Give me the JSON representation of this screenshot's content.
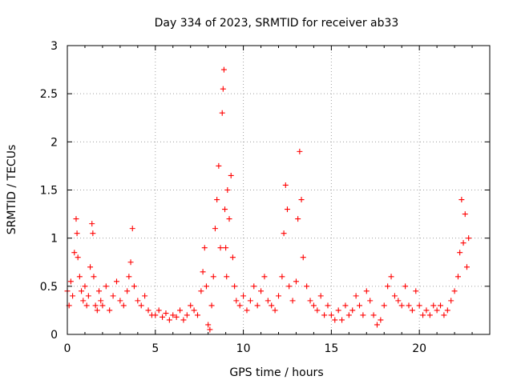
{
  "chart_data": {
    "type": "scatter",
    "title": "Day 334 of 2023, SRMTID for receiver ab33",
    "xlabel": "GPS time / hours",
    "ylabel": "SRMTID / TECUs",
    "xlim": [
      0,
      24
    ],
    "ylim": [
      0,
      3
    ],
    "xticks": [
      0,
      5,
      10,
      15,
      20
    ],
    "xtick_labels": [
      "0",
      "5",
      "10",
      "15",
      "20"
    ],
    "yticks": [
      0,
      0.5,
      1,
      1.5,
      2,
      2.5,
      3
    ],
    "ytick_labels": [
      "0",
      "0.5",
      "1",
      "1.5",
      "2",
      "2.5",
      "3"
    ],
    "grid": true,
    "marker": "+",
    "series": [
      {
        "name": "SRMTID",
        "color": "#ff0000",
        "x": [
          0.0,
          0.1,
          0.2,
          0.3,
          0.4,
          0.5,
          0.55,
          0.6,
          0.7,
          0.8,
          0.9,
          1.0,
          1.1,
          1.2,
          1.3,
          1.4,
          1.45,
          1.5,
          1.6,
          1.7,
          1.8,
          1.9,
          2.0,
          2.2,
          2.4,
          2.6,
          2.8,
          3.0,
          3.2,
          3.4,
          3.5,
          3.6,
          3.7,
          3.8,
          4.0,
          4.2,
          4.4,
          4.6,
          4.8,
          5.0,
          5.2,
          5.4,
          5.6,
          5.8,
          6.0,
          6.2,
          6.4,
          6.6,
          6.8,
          7.0,
          7.2,
          7.4,
          7.6,
          7.7,
          7.8,
          7.9,
          8.0,
          8.1,
          8.2,
          8.3,
          8.4,
          8.5,
          8.6,
          8.7,
          8.8,
          8.85,
          8.9,
          8.95,
          9.0,
          9.05,
          9.1,
          9.2,
          9.3,
          9.4,
          9.5,
          9.6,
          9.8,
          10.0,
          10.2,
          10.4,
          10.6,
          10.8,
          11.0,
          11.2,
          11.4,
          11.6,
          11.8,
          12.0,
          12.2,
          12.3,
          12.4,
          12.5,
          12.6,
          12.8,
          13.0,
          13.1,
          13.2,
          13.3,
          13.4,
          13.6,
          13.8,
          14.0,
          14.2,
          14.4,
          14.6,
          14.8,
          15.0,
          15.2,
          15.4,
          15.6,
          15.8,
          16.0,
          16.2,
          16.4,
          16.6,
          16.8,
          17.0,
          17.2,
          17.4,
          17.6,
          17.8,
          18.0,
          18.2,
          18.4,
          18.6,
          18.8,
          19.0,
          19.2,
          19.4,
          19.6,
          19.8,
          20.0,
          20.2,
          20.4,
          20.6,
          20.8,
          21.0,
          21.2,
          21.4,
          21.6,
          21.8,
          22.0,
          22.2,
          22.3,
          22.4,
          22.5,
          22.6,
          22.7,
          22.8
        ],
        "y": [
          0.45,
          0.3,
          0.55,
          0.4,
          0.85,
          1.2,
          1.05,
          0.8,
          0.6,
          0.45,
          0.35,
          0.5,
          0.3,
          0.4,
          0.7,
          1.15,
          1.05,
          0.6,
          0.3,
          0.25,
          0.45,
          0.35,
          0.3,
          0.5,
          0.25,
          0.4,
          0.55,
          0.35,
          0.3,
          0.45,
          0.6,
          0.75,
          1.1,
          0.5,
          0.35,
          0.3,
          0.4,
          0.25,
          0.2,
          0.2,
          0.25,
          0.18,
          0.22,
          0.15,
          0.2,
          0.18,
          0.25,
          0.15,
          0.2,
          0.3,
          0.25,
          0.2,
          0.45,
          0.65,
          0.9,
          0.5,
          0.1,
          0.05,
          0.3,
          0.6,
          1.1,
          1.4,
          1.75,
          0.9,
          2.3,
          2.55,
          2.75,
          1.3,
          0.9,
          0.6,
          1.5,
          1.2,
          1.65,
          0.8,
          0.5,
          0.35,
          0.3,
          0.4,
          0.25,
          0.35,
          0.5,
          0.3,
          0.45,
          0.6,
          0.35,
          0.3,
          0.25,
          0.4,
          0.6,
          1.05,
          1.55,
          1.3,
          0.5,
          0.35,
          0.55,
          1.2,
          1.9,
          1.4,
          0.8,
          0.5,
          0.35,
          0.3,
          0.25,
          0.4,
          0.2,
          0.3,
          0.2,
          0.15,
          0.25,
          0.15,
          0.3,
          0.2,
          0.25,
          0.4,
          0.3,
          0.2,
          0.45,
          0.35,
          0.2,
          0.1,
          0.15,
          0.3,
          0.5,
          0.6,
          0.4,
          0.35,
          0.3,
          0.5,
          0.3,
          0.25,
          0.45,
          0.3,
          0.2,
          0.25,
          0.2,
          0.3,
          0.25,
          0.3,
          0.2,
          0.25,
          0.35,
          0.45,
          0.6,
          0.85,
          1.4,
          0.95,
          1.25,
          0.7,
          1.0
        ]
      }
    ]
  }
}
